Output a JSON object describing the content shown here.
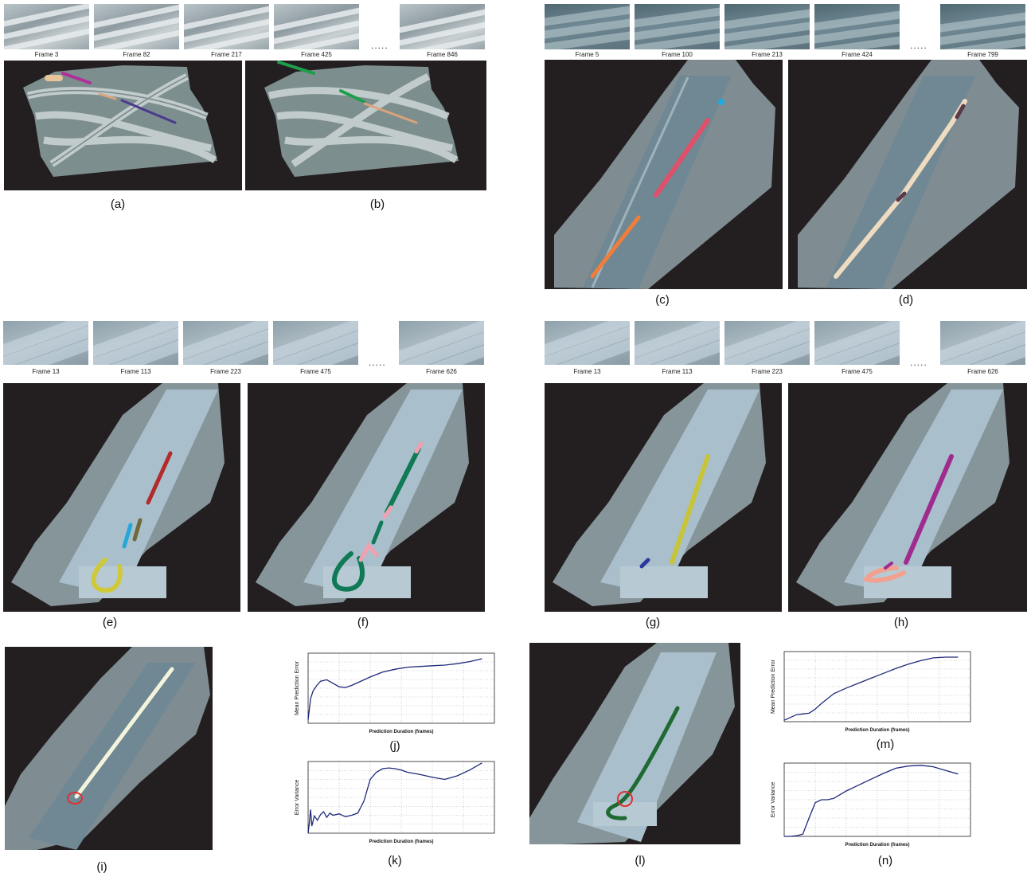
{
  "strips": [
    {
      "id": "strip-a",
      "style": "",
      "frames": [
        "Frame 3",
        "Frame 82",
        "Frame 217",
        "Frame 425"
      ],
      "last": "Frame 846"
    },
    {
      "id": "strip-c",
      "style": "road",
      "frames": [
        "Frame 5",
        "Frame 100",
        "Frame 213",
        "Frame 424"
      ],
      "last": "Frame 799"
    },
    {
      "id": "strip-e",
      "style": "field",
      "frames": [
        "Frame 13",
        "Frame 113",
        "Frame 223",
        "Frame 475"
      ],
      "last": "Frame 626"
    },
    {
      "id": "strip-g",
      "style": "field",
      "frames": [
        "Frame 13",
        "Frame 113",
        "Frame 223",
        "Frame 475"
      ],
      "last": "Frame 626"
    }
  ],
  "ellipsis": ".....",
  "captions": {
    "a": "(a)",
    "b": "(b)",
    "c": "(c)",
    "d": "(d)",
    "e": "(e)",
    "f": "(f)",
    "g": "(g)",
    "h": "(h)",
    "i": "(i)",
    "j": "(j)",
    "k": "(k)",
    "l": "(l)",
    "m": "(m)",
    "n": "(n)"
  },
  "chart_data": [
    {
      "id": "j",
      "type": "line",
      "ylabel": "Mean Prediction Error",
      "xlabel": "Prediction Duration (frames)",
      "xlim": [
        0,
        3000
      ],
      "ylim": [
        0,
        1
      ],
      "grid": true,
      "color": "#1f2a7a",
      "x": [
        0,
        40,
        80,
        140,
        200,
        300,
        400,
        500,
        600,
        700,
        800,
        1000,
        1200,
        1400,
        1600,
        1800,
        2000,
        2200,
        2400,
        2600,
        2800
      ],
      "y": [
        0.05,
        0.35,
        0.46,
        0.54,
        0.6,
        0.62,
        0.57,
        0.52,
        0.51,
        0.54,
        0.58,
        0.66,
        0.73,
        0.77,
        0.8,
        0.81,
        0.82,
        0.83,
        0.85,
        0.88,
        0.92
      ]
    },
    {
      "id": "k",
      "type": "line",
      "ylabel": "Error Variance",
      "xlabel": "Prediction Duration (frames)",
      "xlim": [
        0,
        3000
      ],
      "ylim": [
        0,
        1
      ],
      "grid": true,
      "color": "#1f2a7a",
      "x": [
        0,
        20,
        40,
        60,
        100,
        150,
        200,
        250,
        300,
        350,
        400,
        500,
        600,
        700,
        800,
        900,
        1000,
        1100,
        1200,
        1300,
        1400,
        1500,
        1600,
        1800,
        2000,
        2200,
        2400,
        2600,
        2800
      ],
      "y": [
        0.0,
        0.15,
        0.33,
        0.1,
        0.24,
        0.18,
        0.26,
        0.3,
        0.22,
        0.28,
        0.25,
        0.27,
        0.23,
        0.25,
        0.28,
        0.45,
        0.75,
        0.85,
        0.9,
        0.91,
        0.9,
        0.88,
        0.85,
        0.82,
        0.78,
        0.75,
        0.8,
        0.88,
        0.98
      ]
    },
    {
      "id": "m",
      "type": "line",
      "ylabel": "Mean Prediction Error",
      "xlabel": "Prediction Duration (frames)",
      "xlim": [
        0,
        3000
      ],
      "ylim": [
        0,
        1
      ],
      "grid": true,
      "color": "#1f2a7a",
      "x": [
        0,
        100,
        200,
        300,
        400,
        500,
        600,
        800,
        1000,
        1200,
        1400,
        1600,
        1800,
        2000,
        2200,
        2400,
        2600,
        2800
      ],
      "y": [
        0.02,
        0.06,
        0.1,
        0.11,
        0.12,
        0.18,
        0.26,
        0.4,
        0.48,
        0.55,
        0.62,
        0.69,
        0.76,
        0.82,
        0.87,
        0.91,
        0.92,
        0.92
      ]
    },
    {
      "id": "n",
      "type": "line",
      "ylabel": "Error Variance",
      "xlabel": "Prediction Duration (frames)",
      "xlim": [
        0,
        3000
      ],
      "ylim": [
        0,
        1
      ],
      "grid": true,
      "color": "#1f2a7a",
      "x": [
        0,
        100,
        200,
        300,
        400,
        500,
        600,
        700,
        800,
        900,
        1000,
        1200,
        1400,
        1600,
        1800,
        2000,
        2200,
        2400,
        2600,
        2800
      ],
      "y": [
        0.0,
        0.0,
        0.01,
        0.03,
        0.25,
        0.46,
        0.5,
        0.5,
        0.52,
        0.57,
        0.62,
        0.7,
        0.78,
        0.86,
        0.93,
        0.96,
        0.97,
        0.95,
        0.9,
        0.85
      ]
    }
  ]
}
